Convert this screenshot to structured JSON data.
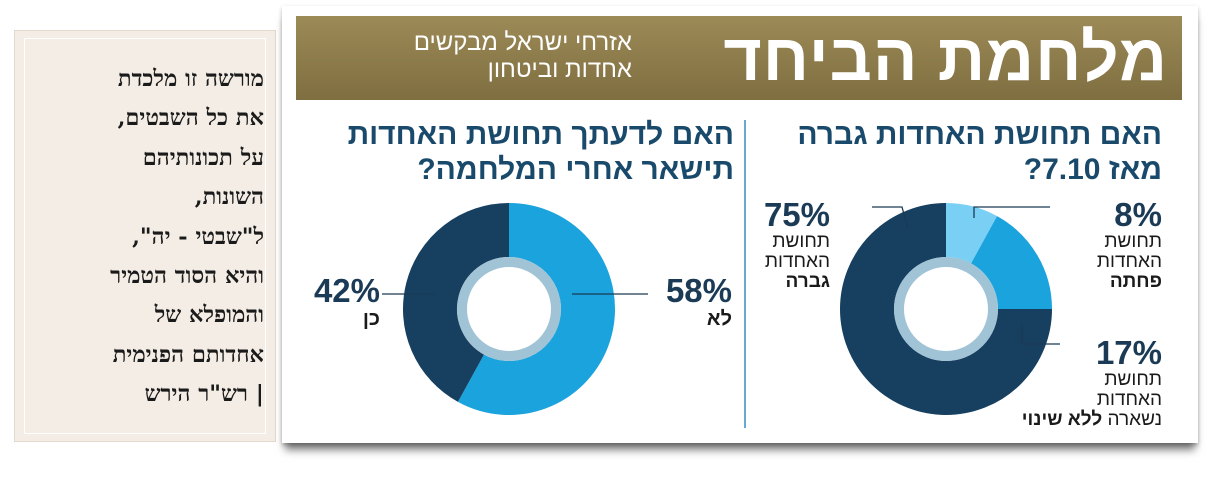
{
  "quote": {
    "lines": [
      "מורשה זו מלכדת",
      "את כל השבטים,",
      "על תכונותיהם",
      "השונות,",
      "ל\"שבטי - יה\",",
      "והיא הסוד הטמיר",
      "והמופלא של",
      "אחדותם הפנימית",
      "| רש\"ר הירש"
    ]
  },
  "banner": {
    "title": "מלחמת הביחד",
    "subtitle_line1": "אזרחי ישראל מבקשים",
    "subtitle_line2": "אחדות וביטחון",
    "color": "#8d7b4a"
  },
  "colors": {
    "dark": "#163f60",
    "mid": "#1aa3dc",
    "light": "#79d0f4",
    "ring": "#8fb9cf",
    "question": "#1a4a6b"
  },
  "chart_data": [
    {
      "type": "pie",
      "title_line1": "האם תחושת האחדות גברה",
      "title_line2": "מאז 7.10?",
      "slices": [
        {
          "label_line1": "תחושת",
          "label_line2": "האחדות",
          "label_bold": "גברה",
          "label_prefix": "",
          "value": 75,
          "pct_text": "75%",
          "color": "#163f60"
        },
        {
          "label_line1": "תחושת",
          "label_line2": "האחדות",
          "label_bold": "פחתה",
          "label_prefix": "",
          "value": 8,
          "pct_text": "8%",
          "color": "#79d0f4"
        },
        {
          "label_line1": "תחושת",
          "label_line2": "האחדות",
          "label_bold": "ללא שינוי",
          "label_prefix": "נשארה ",
          "value": 17,
          "pct_text": "17%",
          "color": "#1aa3dc"
        }
      ]
    },
    {
      "type": "pie",
      "title_line1": "האם לדעתך תחושת האחדות",
      "title_line2": "תישאר אחרי המלחמה?",
      "slices": [
        {
          "label": "לא",
          "value": 58,
          "pct_text": "58%",
          "color": "#1aa3dc"
        },
        {
          "label": "כן",
          "value": 42,
          "pct_text": "42%",
          "color": "#163f60"
        }
      ]
    }
  ]
}
